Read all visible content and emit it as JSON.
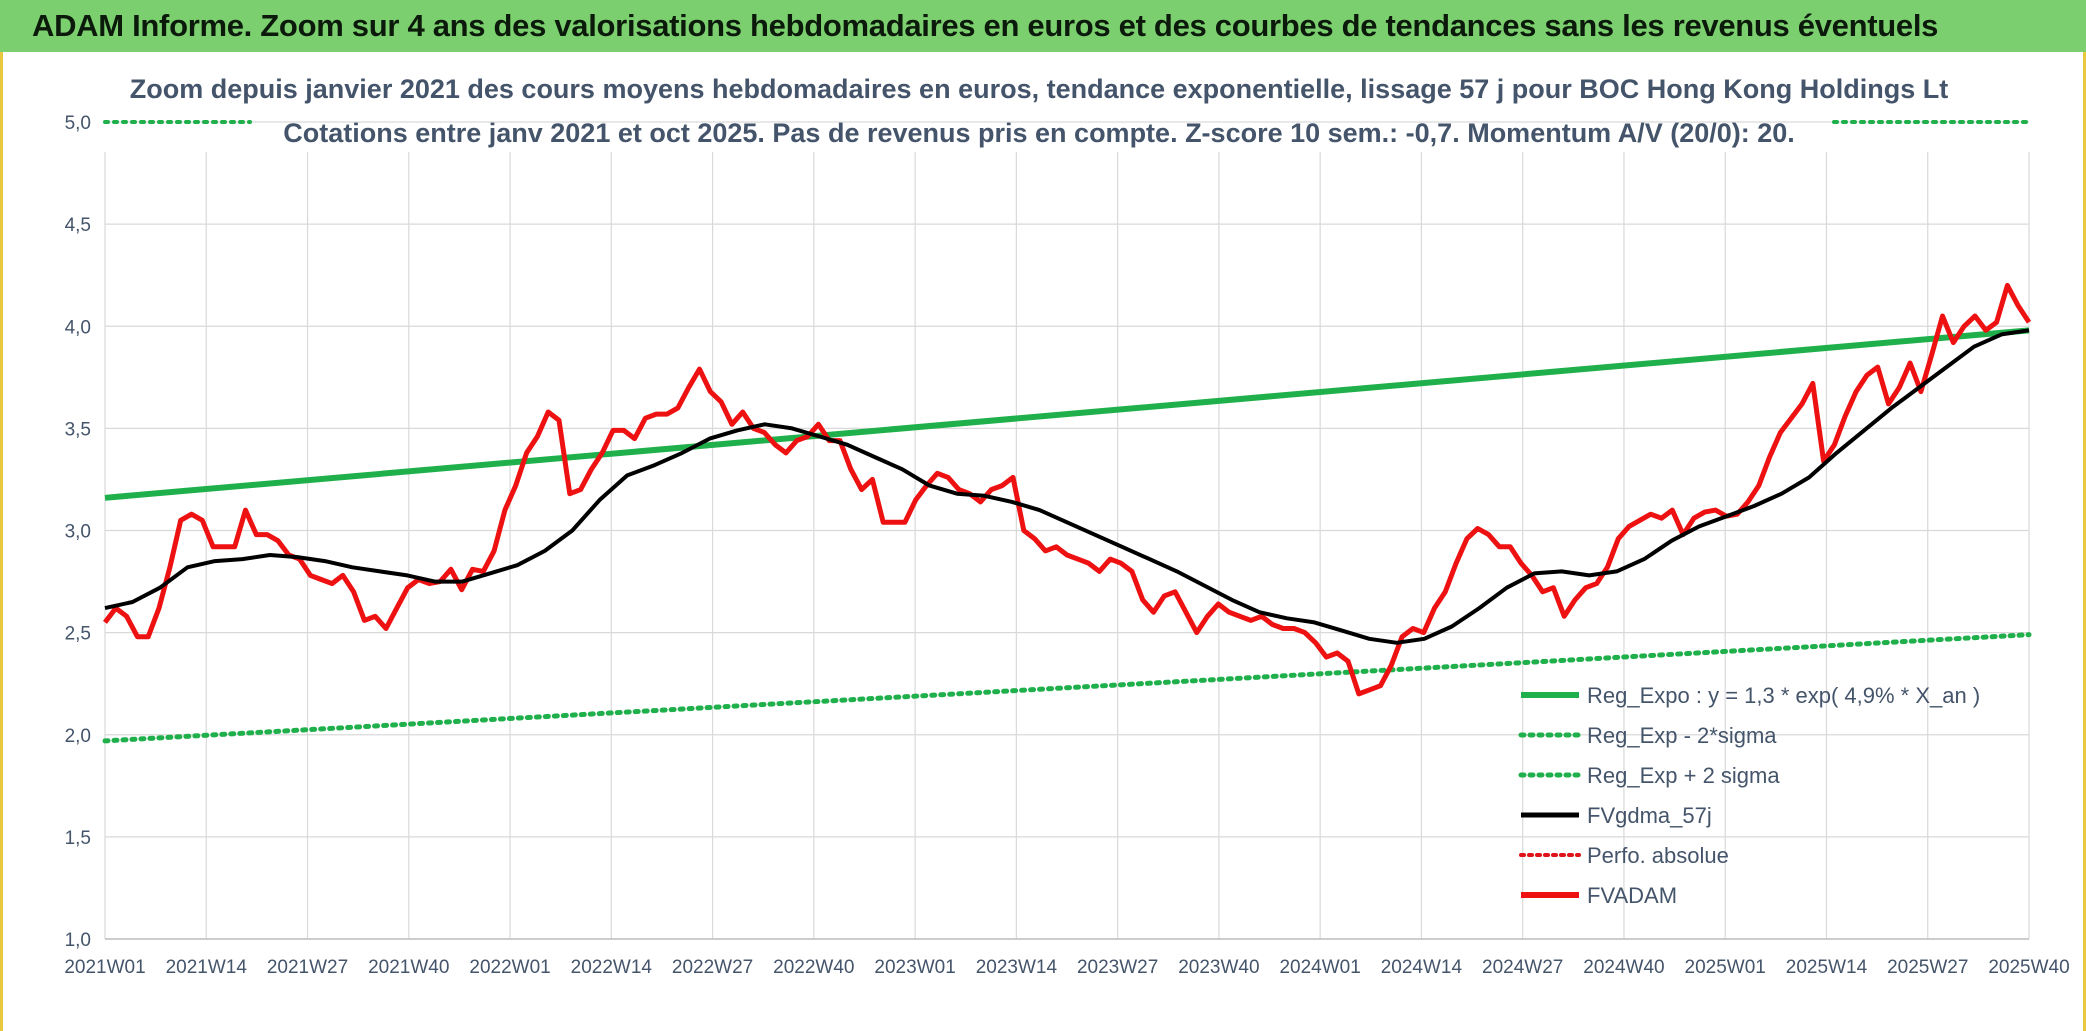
{
  "header": {
    "title": "ADAM Informe. Zoom sur 4 ans des valorisations hebdomadaires en euros et des courbes de tendances sans les revenus éventuels"
  },
  "colors": {
    "expo": "#1fb04c",
    "sigma": "#1fb04c",
    "fvgdma": "#000000",
    "perfo": "#e0131a",
    "fvadam": "#ee1111",
    "grid": "#d9d9d9",
    "text": "#44546a"
  },
  "chart_data": {
    "type": "line",
    "title": "Zoom depuis janvier 2021 des cours moyens hebdomadaires en euros, tendance exponentielle, lissage 57 j pour BOC Hong Kong Holdings Lt",
    "subtitle": "Cotations entre janv 2021 et oct 2025. Pas de revenus pris en compte. Z-score 10 sem.: -0,7. Momentum A/V (20/0): 20.",
    "xlabel": "",
    "ylabel": "",
    "ylim": [
      1.0,
      5.0
    ],
    "yticks": [
      "1,0",
      "1,5",
      "2,0",
      "2,5",
      "3,0",
      "3,5",
      "4,0",
      "4,5",
      "5,0"
    ],
    "xticks": [
      "2021W01",
      "2021W14",
      "2021W27",
      "2021W40",
      "2022W01",
      "2022W14",
      "2022W27",
      "2022W40",
      "2023W01",
      "2023W14",
      "2023W27",
      "2023W40",
      "2024W01",
      "2024W14",
      "2024W27",
      "2024W40",
      "2025W01",
      "2025W14",
      "2025W27",
      "2025W40"
    ],
    "grid": true,
    "legend_position": "bottom-right",
    "legend": [
      "Reg_Expo : y = 1,3 * exp( 4,9% *  X_an )",
      "Reg_Exp - 2*sigma",
      "Reg_Exp + 2 sigma",
      "FVgdma_57j",
      "Perfo. absolue",
      "FVADAM"
    ],
    "series": [
      {
        "name": "Reg_Expo : y = 1,3 * exp( 4,9% *  X_an )",
        "style": "solid",
        "endpoints": [
          [
            0,
            3.16
          ],
          [
            247,
            3.98
          ]
        ]
      },
      {
        "name": "Reg_Exp - 2*sigma",
        "style": "dotted",
        "endpoints": [
          [
            0,
            1.97
          ],
          [
            247,
            2.49
          ]
        ]
      },
      {
        "name": "Reg_Exp + 2 sigma",
        "style": "dotted",
        "endpoints": [
          [
            0,
            5.0
          ],
          [
            247,
            5.0
          ]
        ]
      },
      {
        "name": "FVgdma_57j",
        "style": "solid",
        "points": [
          [
            0,
            2.62
          ],
          [
            4,
            2.65
          ],
          [
            8,
            2.72
          ],
          [
            12,
            2.82
          ],
          [
            16,
            2.85
          ],
          [
            20,
            2.86
          ],
          [
            24,
            2.88
          ],
          [
            28,
            2.87
          ],
          [
            32,
            2.85
          ],
          [
            36,
            2.82
          ],
          [
            40,
            2.8
          ],
          [
            44,
            2.78
          ],
          [
            48,
            2.75
          ],
          [
            52,
            2.75
          ],
          [
            56,
            2.79
          ],
          [
            60,
            2.83
          ],
          [
            64,
            2.9
          ],
          [
            68,
            3.0
          ],
          [
            72,
            3.15
          ],
          [
            76,
            3.27
          ],
          [
            80,
            3.32
          ],
          [
            84,
            3.38
          ],
          [
            88,
            3.45
          ],
          [
            92,
            3.49
          ],
          [
            96,
            3.52
          ],
          [
            100,
            3.5
          ],
          [
            104,
            3.46
          ],
          [
            108,
            3.42
          ],
          [
            112,
            3.36
          ],
          [
            116,
            3.3
          ],
          [
            120,
            3.22
          ],
          [
            124,
            3.18
          ],
          [
            128,
            3.17
          ],
          [
            132,
            3.14
          ],
          [
            136,
            3.1
          ],
          [
            140,
            3.04
          ],
          [
            144,
            2.98
          ],
          [
            148,
            2.92
          ],
          [
            152,
            2.86
          ],
          [
            156,
            2.8
          ],
          [
            160,
            2.73
          ],
          [
            164,
            2.66
          ],
          [
            168,
            2.6
          ],
          [
            172,
            2.57
          ],
          [
            176,
            2.55
          ],
          [
            180,
            2.51
          ],
          [
            184,
            2.47
          ],
          [
            188,
            2.45
          ],
          [
            192,
            2.47
          ],
          [
            196,
            2.53
          ],
          [
            200,
            2.62
          ],
          [
            204,
            2.72
          ],
          [
            208,
            2.79
          ],
          [
            212,
            2.8
          ],
          [
            216,
            2.78
          ],
          [
            220,
            2.8
          ],
          [
            224,
            2.86
          ],
          [
            228,
            2.95
          ],
          [
            232,
            3.02
          ],
          [
            236,
            3.07
          ],
          [
            240,
            3.12
          ],
          [
            244,
            3.18
          ],
          [
            248,
            3.26
          ],
          [
            252,
            3.38
          ],
          [
            256,
            3.49
          ],
          [
            260,
            3.6
          ],
          [
            264,
            3.7
          ],
          [
            268,
            3.8
          ],
          [
            272,
            3.9
          ],
          [
            276,
            3.96
          ],
          [
            280,
            3.98
          ]
        ]
      },
      {
        "name": "Perfo. absolue",
        "style": "dotted",
        "points": []
      },
      {
        "name": "FVADAM",
        "style": "solid",
        "points": [
          [
            0,
            2.55
          ],
          [
            2,
            2.62
          ],
          [
            4,
            2.58
          ],
          [
            6,
            2.48
          ],
          [
            8,
            2.48
          ],
          [
            10,
            2.62
          ],
          [
            12,
            2.82
          ],
          [
            14,
            3.05
          ],
          [
            16,
            3.08
          ],
          [
            18,
            3.05
          ],
          [
            20,
            2.92
          ],
          [
            22,
            2.92
          ],
          [
            24,
            2.92
          ],
          [
            26,
            3.1
          ],
          [
            28,
            2.98
          ],
          [
            30,
            2.98
          ],
          [
            32,
            2.95
          ],
          [
            34,
            2.88
          ],
          [
            36,
            2.86
          ],
          [
            38,
            2.78
          ],
          [
            40,
            2.76
          ],
          [
            42,
            2.74
          ],
          [
            44,
            2.78
          ],
          [
            46,
            2.7
          ],
          [
            48,
            2.56
          ],
          [
            50,
            2.58
          ],
          [
            52,
            2.52
          ],
          [
            54,
            2.62
          ],
          [
            56,
            2.72
          ],
          [
            58,
            2.76
          ],
          [
            60,
            2.74
          ],
          [
            62,
            2.75
          ],
          [
            64,
            2.81
          ],
          [
            66,
            2.71
          ],
          [
            68,
            2.81
          ],
          [
            70,
            2.8
          ],
          [
            72,
            2.9
          ],
          [
            74,
            3.1
          ],
          [
            76,
            3.22
          ],
          [
            78,
            3.38
          ],
          [
            80,
            3.46
          ],
          [
            82,
            3.58
          ],
          [
            84,
            3.54
          ],
          [
            86,
            3.18
          ],
          [
            88,
            3.2
          ],
          [
            90,
            3.3
          ],
          [
            92,
            3.38
          ],
          [
            94,
            3.49
          ],
          [
            96,
            3.49
          ],
          [
            98,
            3.45
          ],
          [
            100,
            3.55
          ],
          [
            102,
            3.57
          ],
          [
            104,
            3.57
          ],
          [
            106,
            3.6
          ],
          [
            108,
            3.7
          ],
          [
            110,
            3.79
          ],
          [
            112,
            3.68
          ],
          [
            114,
            3.63
          ],
          [
            116,
            3.52
          ],
          [
            118,
            3.58
          ],
          [
            120,
            3.5
          ],
          [
            122,
            3.48
          ],
          [
            124,
            3.42
          ],
          [
            126,
            3.38
          ],
          [
            128,
            3.44
          ],
          [
            130,
            3.46
          ],
          [
            132,
            3.52
          ],
          [
            134,
            3.44
          ],
          [
            136,
            3.44
          ],
          [
            138,
            3.3
          ],
          [
            140,
            3.2
          ],
          [
            142,
            3.25
          ],
          [
            144,
            3.04
          ],
          [
            146,
            3.04
          ],
          [
            148,
            3.04
          ],
          [
            150,
            3.15
          ],
          [
            152,
            3.22
          ],
          [
            154,
            3.28
          ],
          [
            156,
            3.26
          ],
          [
            158,
            3.2
          ],
          [
            160,
            3.18
          ],
          [
            162,
            3.14
          ],
          [
            164,
            3.2
          ],
          [
            166,
            3.22
          ],
          [
            168,
            3.26
          ],
          [
            170,
            3.0
          ],
          [
            172,
            2.96
          ],
          [
            174,
            2.9
          ],
          [
            176,
            2.92
          ],
          [
            178,
            2.88
          ],
          [
            180,
            2.86
          ],
          [
            182,
            2.84
          ],
          [
            184,
            2.8
          ],
          [
            186,
            2.86
          ],
          [
            188,
            2.84
          ],
          [
            190,
            2.8
          ],
          [
            192,
            2.66
          ],
          [
            194,
            2.6
          ],
          [
            196,
            2.68
          ],
          [
            198,
            2.7
          ],
          [
            200,
            2.6
          ],
          [
            202,
            2.5
          ],
          [
            204,
            2.58
          ],
          [
            206,
            2.64
          ],
          [
            208,
            2.6
          ],
          [
            210,
            2.58
          ],
          [
            212,
            2.56
          ],
          [
            214,
            2.58
          ],
          [
            216,
            2.54
          ],
          [
            218,
            2.52
          ],
          [
            220,
            2.52
          ],
          [
            222,
            2.5
          ],
          [
            224,
            2.45
          ],
          [
            226,
            2.38
          ],
          [
            228,
            2.4
          ],
          [
            230,
            2.36
          ],
          [
            232,
            2.2
          ],
          [
            234,
            2.22
          ],
          [
            236,
            2.24
          ],
          [
            238,
            2.34
          ],
          [
            240,
            2.48
          ],
          [
            242,
            2.52
          ],
          [
            244,
            2.5
          ],
          [
            246,
            2.62
          ],
          [
            248,
            2.7
          ],
          [
            250,
            2.84
          ],
          [
            252,
            2.96
          ],
          [
            254,
            3.01
          ],
          [
            256,
            2.98
          ],
          [
            258,
            2.92
          ],
          [
            260,
            2.92
          ],
          [
            262,
            2.84
          ],
          [
            264,
            2.78
          ],
          [
            266,
            2.7
          ],
          [
            268,
            2.72
          ],
          [
            270,
            2.58
          ],
          [
            272,
            2.66
          ],
          [
            274,
            2.72
          ],
          [
            276,
            2.74
          ],
          [
            278,
            2.82
          ],
          [
            280,
            2.96
          ],
          [
            282,
            3.02
          ],
          [
            284,
            3.05
          ],
          [
            286,
            3.08
          ],
          [
            288,
            3.06
          ],
          [
            290,
            3.1
          ],
          [
            292,
            2.98
          ],
          [
            294,
            3.06
          ],
          [
            296,
            3.09
          ],
          [
            298,
            3.1
          ],
          [
            300,
            3.07
          ],
          [
            302,
            3.08
          ],
          [
            304,
            3.14
          ],
          [
            306,
            3.22
          ],
          [
            308,
            3.36
          ],
          [
            310,
            3.48
          ],
          [
            312,
            3.55
          ],
          [
            314,
            3.62
          ],
          [
            316,
            3.72
          ],
          [
            318,
            3.34
          ],
          [
            320,
            3.42
          ],
          [
            322,
            3.56
          ],
          [
            324,
            3.68
          ],
          [
            326,
            3.76
          ],
          [
            328,
            3.8
          ],
          [
            330,
            3.62
          ],
          [
            332,
            3.7
          ],
          [
            334,
            3.82
          ],
          [
            336,
            3.68
          ],
          [
            338,
            3.86
          ],
          [
            340,
            4.05
          ],
          [
            342,
            3.92
          ],
          [
            344,
            4.0
          ],
          [
            346,
            4.05
          ],
          [
            348,
            3.98
          ],
          [
            350,
            4.02
          ],
          [
            352,
            4.2
          ],
          [
            354,
            4.1
          ],
          [
            356,
            4.02
          ]
        ]
      }
    ]
  }
}
